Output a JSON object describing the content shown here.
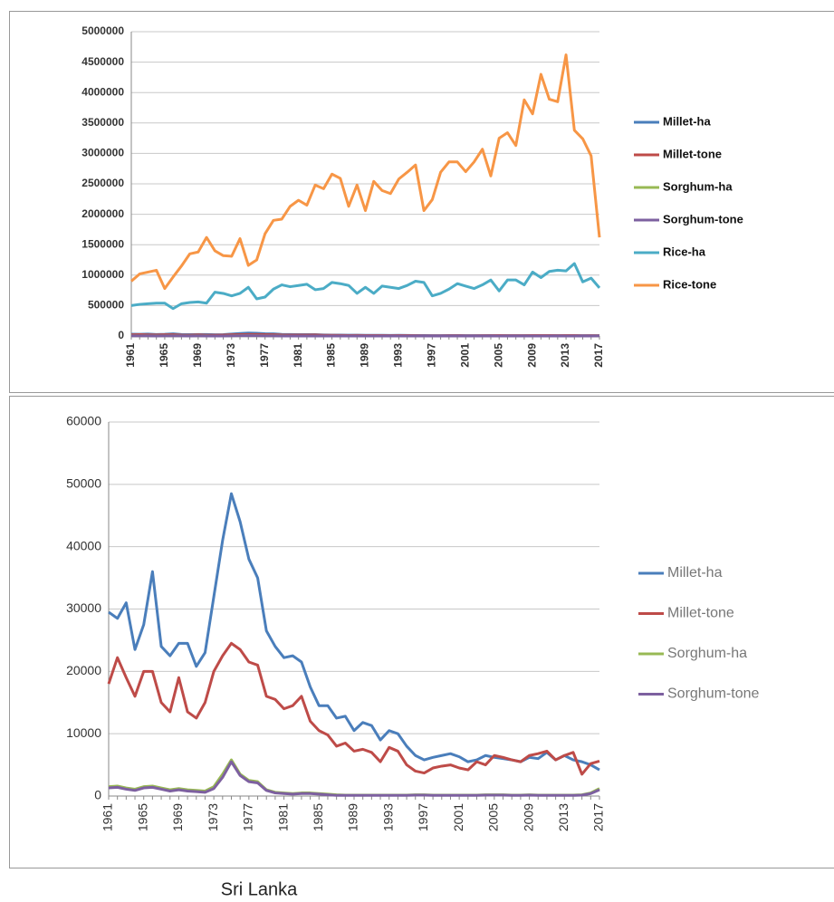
{
  "caption": "Sri Lanka",
  "chart_data": [
    {
      "type": "line",
      "ylim": [
        0,
        5000000
      ],
      "yticks": [
        0,
        500000,
        1000000,
        1500000,
        2000000,
        2500000,
        3000000,
        3500000,
        4000000,
        4500000,
        5000000
      ],
      "grid": true,
      "legend": "right",
      "categories": [
        "1961",
        null,
        null,
        null,
        "1965",
        null,
        null,
        null,
        "1969",
        null,
        null,
        null,
        "1973",
        null,
        null,
        null,
        "1977",
        null,
        null,
        null,
        "1981",
        null,
        null,
        null,
        "1985",
        null,
        null,
        null,
        "1989",
        null,
        null,
        null,
        "1993",
        null,
        null,
        null,
        "1997",
        null,
        null,
        null,
        "2001",
        null,
        null,
        null,
        "2005",
        null,
        null,
        null,
        "2009",
        null,
        null,
        null,
        "2013",
        null,
        null,
        null,
        "2017"
      ],
      "series": [
        {
          "name": "Millet-ha",
          "color": "#4a7ebb",
          "values": [
            29500,
            28500,
            31000,
            23500,
            27500,
            36000,
            24000,
            22500,
            24500,
            24500,
            20800,
            23000,
            32000,
            41000,
            48500,
            44000,
            38000,
            35000,
            26500,
            24000,
            22200,
            22500,
            21500,
            17500,
            14500,
            14500,
            12500,
            12800,
            10500,
            11800,
            11300,
            9000,
            10500,
            10000,
            8000,
            6500,
            5800,
            6200,
            6500,
            6800,
            6300,
            5500,
            5800,
            6500,
            6200,
            6000,
            5800,
            5500,
            6200,
            6000,
            7000,
            5800,
            6500,
            5800,
            5500,
            5000,
            4200
          ]
        },
        {
          "name": "Millet-tone",
          "color": "#be4b48",
          "values": [
            18000,
            22200,
            19000,
            16000,
            20000,
            20000,
            15000,
            13500,
            19000,
            13500,
            12500,
            15000,
            20000,
            22500,
            24500,
            23500,
            21500,
            21000,
            16000,
            15500,
            14000,
            14500,
            16000,
            12000,
            10500,
            9800,
            8000,
            8500,
            7200,
            7500,
            7000,
            5500,
            7800,
            7200,
            5000,
            4000,
            3700,
            4500,
            4800,
            5000,
            4500,
            4200,
            5500,
            5000,
            6500,
            6200,
            5800,
            5500,
            6500,
            6800,
            7200,
            5800,
            6500,
            7000,
            3500,
            5200,
            5600
          ]
        },
        {
          "name": "Sorghum-ha",
          "color": "#98b954",
          "values": [
            1500,
            1600,
            1300,
            1100,
            1500,
            1600,
            1300,
            1000,
            1200,
            1000,
            900,
            800,
            1500,
            3500,
            5800,
            3500,
            2500,
            2300,
            1000,
            600,
            500,
            400,
            500,
            500,
            400,
            300,
            200,
            150,
            150,
            150,
            150,
            150,
            150,
            150,
            150,
            200,
            200,
            150,
            150,
            150,
            150,
            150,
            150,
            200,
            200,
            200,
            150,
            150,
            200,
            150,
            150,
            150,
            150,
            150,
            200,
            500,
            1200
          ]
        },
        {
          "name": "Sorghum-tone",
          "color": "#7d60a0",
          "values": [
            1300,
            1400,
            1100,
            900,
            1300,
            1400,
            1100,
            800,
            1000,
            800,
            700,
            600,
            1200,
            3000,
            5500,
            3300,
            2300,
            2100,
            900,
            500,
            400,
            300,
            400,
            400,
            300,
            200,
            100,
            100,
            100,
            100,
            100,
            100,
            100,
            100,
            100,
            150,
            150,
            100,
            100,
            100,
            100,
            100,
            100,
            150,
            150,
            150,
            100,
            100,
            150,
            100,
            100,
            100,
            100,
            100,
            150,
            400,
            1000
          ]
        },
        {
          "name": "Rice-ha",
          "color": "#4bacc6",
          "values": [
            500000,
            520000,
            530000,
            540000,
            540000,
            450000,
            530000,
            550000,
            560000,
            540000,
            720000,
            700000,
            660000,
            700000,
            800000,
            610000,
            640000,
            770000,
            840000,
            810000,
            830000,
            850000,
            760000,
            780000,
            880000,
            860000,
            830000,
            700000,
            800000,
            700000,
            820000,
            800000,
            780000,
            830000,
            900000,
            880000,
            660000,
            700000,
            770000,
            860000,
            820000,
            780000,
            840000,
            920000,
            740000,
            920000,
            920000,
            840000,
            1050000,
            960000,
            1060000,
            1080000,
            1070000,
            1190000,
            890000,
            950000,
            790000
          ]
        },
        {
          "name": "Rice-tone",
          "color": "#f79646",
          "values": [
            900000,
            1020000,
            1050000,
            1080000,
            780000,
            970000,
            1150000,
            1350000,
            1380000,
            1620000,
            1400000,
            1320000,
            1310000,
            1600000,
            1160000,
            1250000,
            1680000,
            1900000,
            1920000,
            2130000,
            2230000,
            2150000,
            2480000,
            2420000,
            2660000,
            2590000,
            2130000,
            2480000,
            2060000,
            2540000,
            2390000,
            2340000,
            2580000,
            2690000,
            2810000,
            2060000,
            2240000,
            2690000,
            2860000,
            2860000,
            2700000,
            2860000,
            3070000,
            2630000,
            3250000,
            3340000,
            3130000,
            3880000,
            3650000,
            4300000,
            3890000,
            3850000,
            4620000,
            3380000,
            3240000,
            2960000,
            1620000
          ]
        }
      ]
    },
    {
      "type": "line",
      "ylim": [
        0,
        60000
      ],
      "yticks": [
        0,
        10000,
        20000,
        30000,
        40000,
        50000,
        60000
      ],
      "grid": true,
      "legend": "right",
      "categories": [
        "1961",
        null,
        null,
        null,
        "1965",
        null,
        null,
        null,
        "1969",
        null,
        null,
        null,
        "1973",
        null,
        null,
        null,
        "1977",
        null,
        null,
        null,
        "1981",
        null,
        null,
        null,
        "1985",
        null,
        null,
        null,
        "1989",
        null,
        null,
        null,
        "1993",
        null,
        null,
        null,
        "1997",
        null,
        null,
        null,
        "2001",
        null,
        null,
        null,
        "2005",
        null,
        null,
        null,
        "2009",
        null,
        null,
        null,
        "2013",
        null,
        null,
        null,
        "2017"
      ],
      "series": [
        {
          "name": "Millet-ha",
          "color": "#4a7ebb",
          "values": [
            29500,
            28500,
            31000,
            23500,
            27500,
            36000,
            24000,
            22500,
            24500,
            24500,
            20800,
            23000,
            32000,
            41000,
            48500,
            44000,
            38000,
            35000,
            26500,
            24000,
            22200,
            22500,
            21500,
            17500,
            14500,
            14500,
            12500,
            12800,
            10500,
            11800,
            11300,
            9000,
            10500,
            10000,
            8000,
            6500,
            5800,
            6200,
            6500,
            6800,
            6300,
            5500,
            5800,
            6500,
            6200,
            6000,
            5800,
            5500,
            6200,
            6000,
            7000,
            5800,
            6500,
            5800,
            5500,
            5000,
            4200
          ]
        },
        {
          "name": "Millet-tone",
          "color": "#be4b48",
          "values": [
            18000,
            22200,
            19000,
            16000,
            20000,
            20000,
            15000,
            13500,
            19000,
            13500,
            12500,
            15000,
            20000,
            22500,
            24500,
            23500,
            21500,
            21000,
            16000,
            15500,
            14000,
            14500,
            16000,
            12000,
            10500,
            9800,
            8000,
            8500,
            7200,
            7500,
            7000,
            5500,
            7800,
            7200,
            5000,
            4000,
            3700,
            4500,
            4800,
            5000,
            4500,
            4200,
            5500,
            5000,
            6500,
            6200,
            5800,
            5500,
            6500,
            6800,
            7200,
            5800,
            6500,
            7000,
            3500,
            5200,
            5600
          ]
        },
        {
          "name": "Sorghum-ha",
          "color": "#98b954",
          "values": [
            1500,
            1600,
            1300,
            1100,
            1500,
            1600,
            1300,
            1000,
            1200,
            1000,
            900,
            800,
            1500,
            3500,
            5800,
            3500,
            2500,
            2300,
            1000,
            600,
            500,
            400,
            500,
            500,
            400,
            300,
            200,
            150,
            150,
            150,
            150,
            150,
            150,
            150,
            150,
            200,
            200,
            150,
            150,
            150,
            150,
            150,
            150,
            200,
            200,
            200,
            150,
            150,
            200,
            150,
            150,
            150,
            150,
            150,
            200,
            500,
            1200
          ]
        },
        {
          "name": "Sorghum-tone",
          "color": "#7d60a0",
          "values": [
            1300,
            1400,
            1100,
            900,
            1300,
            1400,
            1100,
            800,
            1000,
            800,
            700,
            600,
            1200,
            3000,
            5500,
            3300,
            2300,
            2100,
            900,
            500,
            400,
            300,
            400,
            400,
            300,
            200,
            100,
            100,
            100,
            100,
            100,
            100,
            100,
            100,
            100,
            150,
            150,
            100,
            100,
            100,
            100,
            100,
            100,
            150,
            150,
            150,
            100,
            100,
            150,
            100,
            100,
            100,
            100,
            100,
            150,
            400,
            1000
          ]
        }
      ]
    }
  ]
}
